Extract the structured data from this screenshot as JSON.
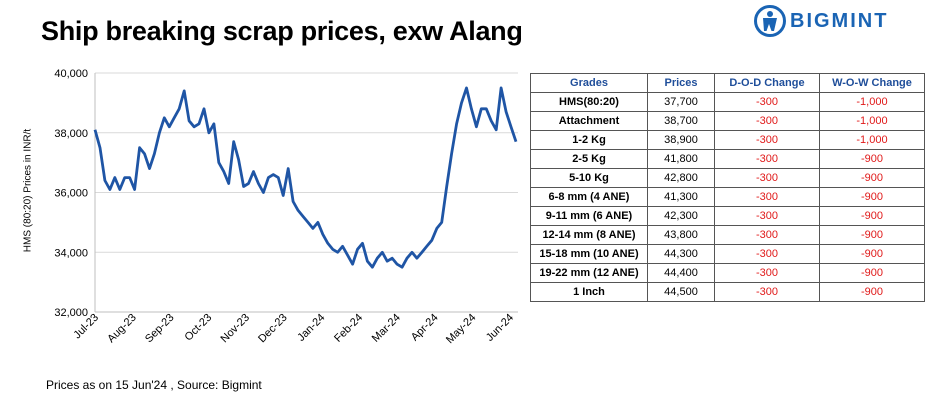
{
  "title": "Ship breaking scrap prices, exw Alang",
  "logo": {
    "text": "BIGMINT",
    "color": "#1a64b4"
  },
  "footer": "Prices as on 15 Jun'24 , Source: Bigmint",
  "table": {
    "headers": [
      "Grades",
      "Prices",
      "D-O-D Change",
      "W-O-W Change"
    ],
    "rows": [
      [
        "HMS(80:20)",
        "37,700",
        "-300",
        "-1,000"
      ],
      [
        "Attachment",
        "38,700",
        "-300",
        "-1,000"
      ],
      [
        "1-2 Kg",
        "38,900",
        "-300",
        "-1,000"
      ],
      [
        "2-5 Kg",
        "41,800",
        "-300",
        "-900"
      ],
      [
        "5-10 Kg",
        "42,800",
        "-300",
        "-900"
      ],
      [
        "6-8 mm (4 ANE)",
        "41,300",
        "-300",
        "-900"
      ],
      [
        "9-11 mm (6 ANE)",
        "42,300",
        "-300",
        "-900"
      ],
      [
        "12-14 mm (8 ANE)",
        "43,800",
        "-300",
        "-900"
      ],
      [
        "15-18 mm (10 ANE)",
        "44,300",
        "-300",
        "-900"
      ],
      [
        "19-22 mm (12 ANE)",
        "44,400",
        "-300",
        "-900"
      ],
      [
        "1 Inch",
        "44,500",
        "-300",
        "-900"
      ]
    ],
    "header_color": "#1f4e9a",
    "change_color": "#e01919"
  },
  "chart_data": {
    "type": "line",
    "title": "",
    "ylabel": "HMS (80:20) Prices in INR/t",
    "xlabel": "",
    "ylim": [
      32000,
      40000
    ],
    "yticks": [
      "32,000",
      "34,000",
      "36,000",
      "38,000",
      "40,000"
    ],
    "xticks": [
      "Jul-23",
      "Aug-23",
      "Sep-23",
      "Oct-23",
      "Nov-23",
      "Dec-23",
      "Jan-24",
      "Feb-24",
      "Mar-24",
      "Apr-24",
      "May-24",
      "Jun-24"
    ],
    "grid": "horizontal",
    "line_color": "#1f55a5",
    "series": [
      {
        "values": [
          38100,
          37500,
          36400,
          36100,
          36500,
          36100,
          36500,
          36500,
          36100,
          37500,
          37300,
          36800,
          37300,
          38000,
          38500,
          38200,
          38500,
          38800,
          39400,
          38400,
          38200,
          38300,
          38800,
          38000,
          38300,
          37000,
          36700,
          36300,
          37700,
          37100,
          36200,
          36300,
          36700,
          36300,
          36000,
          36500,
          36600,
          36500,
          35900,
          36800,
          35700,
          35400,
          35200,
          35000,
          34800,
          35000,
          34600,
          34300,
          34100,
          34000,
          34200,
          33900,
          33600,
          34100,
          34300,
          33700,
          33500,
          33800,
          34000,
          33700,
          33800,
          33600,
          33500,
          33800,
          34000,
          33800,
          34000,
          34200,
          34400,
          34800,
          35000,
          36200,
          37300,
          38300,
          39000,
          39500,
          38800,
          38200,
          38800,
          38800,
          38400,
          38100,
          39500,
          38700,
          38200,
          37700
        ]
      }
    ]
  }
}
